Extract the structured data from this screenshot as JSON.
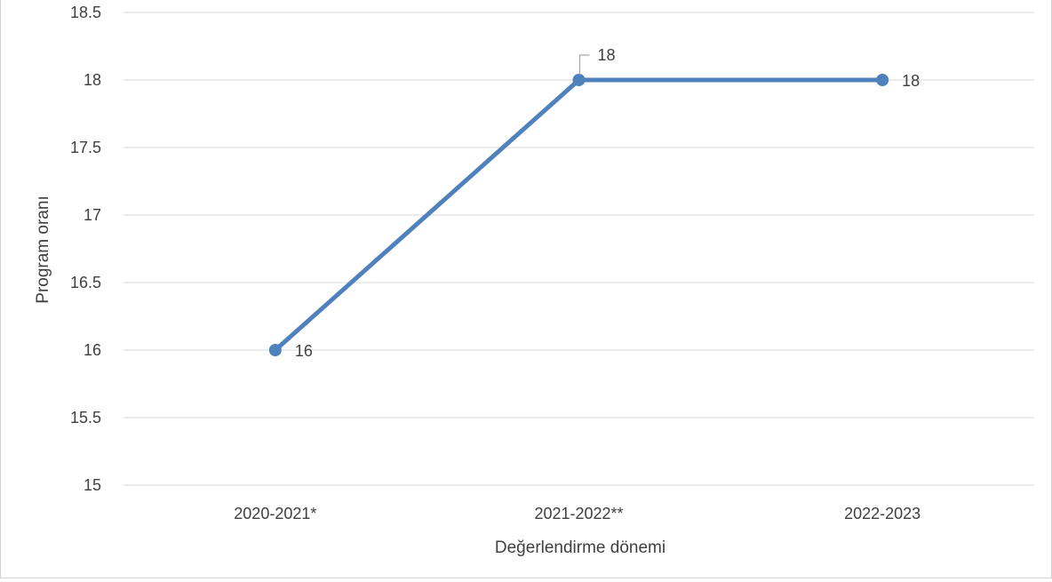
{
  "chart_data": {
    "type": "line",
    "categories": [
      "2020-2021*",
      "2021-2022**",
      "2022-2023"
    ],
    "series": [
      {
        "values": [
          16,
          18,
          18
        ],
        "data_labels": [
          "16",
          "18",
          "18"
        ],
        "color": "#4f81bd"
      }
    ],
    "xlabel": "Değerlendirme dönemi",
    "ylabel": "Program oranı",
    "ylim": [
      15,
      18.5
    ],
    "yticks": [
      15,
      15.5,
      16,
      16.5,
      17,
      17.5,
      18,
      18.5
    ],
    "ytick_labels": [
      "15",
      "15.5",
      "16",
      "16.5",
      "17",
      "17.5",
      "18",
      "18.5"
    ],
    "grid": true,
    "legend": "none"
  },
  "colors": {
    "series_line": "#4f81bd",
    "gridline": "#d9d9d9",
    "text": "#404040",
    "leader_line": "#a6a6a6"
  }
}
